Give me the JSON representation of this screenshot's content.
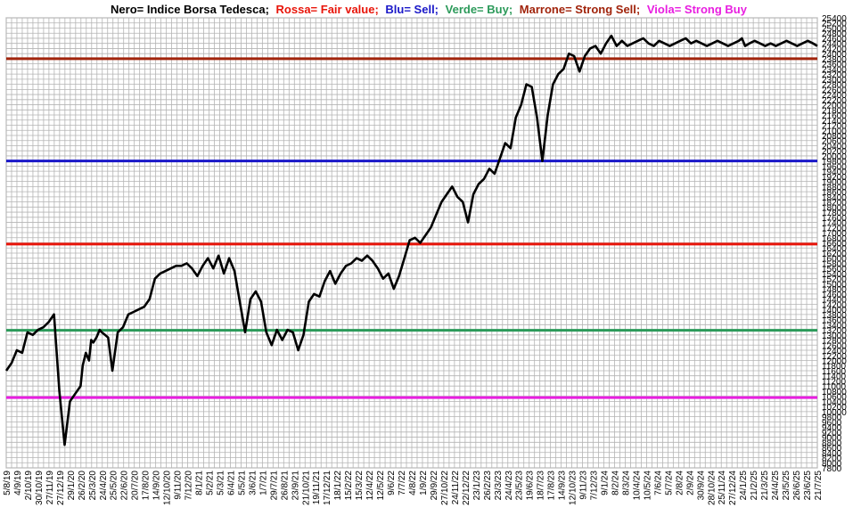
{
  "chart_data": {
    "type": "line",
    "title_parts": [
      {
        "text": "Nero= Indice Borsa Tedesca;",
        "color": "#000000"
      },
      {
        "text": "Rossa= Fair value;",
        "color": "#e8150a"
      },
      {
        "text": "Blu= Sell;",
        "color": "#1a18c8"
      },
      {
        "text": "Verde= Buy;",
        "color": "#2c9a5a"
      },
      {
        "text": "Marrone= Strong Sell;",
        "color": "#a1240c"
      },
      {
        "text": "Viola= Strong Buy",
        "color": "#e81ee0"
      }
    ],
    "ylim": [
      7800,
      25400
    ],
    "ytick_step": 200,
    "ytick_labels": [
      "7800",
      "8000",
      "8200",
      "8400",
      "8600",
      "8800",
      "9000",
      "9200",
      "9400",
      "9600",
      "9800",
      "10000",
      "10200",
      "10400",
      "10600",
      "10800",
      "11000",
      "11200",
      "11400",
      "11600",
      "11800",
      "12000",
      "12200",
      "12400",
      "12600",
      "12800",
      "13000",
      "13200",
      "13400",
      "13600",
      "13800",
      "14000",
      "14200",
      "14400",
      "14600",
      "14800",
      "15000",
      "15200",
      "15400",
      "15600",
      "15800",
      "16000",
      "16200",
      "16400",
      "16600",
      "16800",
      "17000",
      "17200",
      "17400",
      "17600",
      "17800",
      "18000",
      "18200",
      "18400",
      "18600",
      "18800",
      "19000",
      "19200",
      "19400",
      "19600",
      "19800",
      "20000",
      "20200",
      "20400",
      "20600",
      "20800",
      "21000",
      "21200",
      "21400",
      "21600",
      "21800",
      "22000",
      "22200",
      "22400",
      "22600",
      "22800",
      "23000",
      "23200",
      "23400",
      "23600",
      "23800",
      "24000",
      "24200",
      "24400",
      "24600",
      "24800",
      "25000",
      "25200",
      "25400"
    ],
    "xtick_labels": [
      "5/8/19",
      "4/9/19",
      "2/10/19",
      "30/10/19",
      "27/11/19",
      "27/12/19",
      "29/1/20",
      "26/2/20",
      "25/3/20",
      "24/4/20",
      "25/5/20",
      "22/6/20",
      "20/7/20",
      "17/8/20",
      "14/9/20",
      "12/10/20",
      "9/11/20",
      "7/12/20",
      "8/1/21",
      "5/2/21",
      "5/3/21",
      "6/4/21",
      "5/5/21",
      "3/6/21",
      "1/7/21",
      "29/7/21",
      "26/8/21",
      "23/9/21",
      "21/10/21",
      "19/11/21",
      "17/12/21",
      "18/1/22",
      "15/2/22",
      "15/3/22",
      "12/4/22",
      "12/5/22",
      "9/6/22",
      "7/7/22",
      "4/8/22",
      "1/9/22",
      "29/9/22",
      "27/10/22",
      "24/11/22",
      "22/12/22",
      "23/1/23",
      "26/2/23",
      "23/3/23",
      "24/4/23",
      "23/5/23",
      "19/6/23",
      "18/7/23",
      "17/8/23",
      "14/9/23",
      "12/10/23",
      "9/11/23",
      "7/12/23",
      "9/1/24",
      "8/2/24",
      "8/3/24",
      "10/4/24",
      "10/5/24",
      "7/6/24",
      "5/7/24",
      "2/8/24",
      "2/9/24",
      "30/9/24",
      "28/10/24",
      "25/11/24",
      "27/12/24",
      "24/1/25",
      "21/2/25",
      "21/3/25",
      "24/4/25",
      "23/5/25",
      "26/6/25",
      "23/6/25",
      "21/7/25"
    ],
    "horizontal_lines": [
      {
        "name": "Strong Sell",
        "value": 23800,
        "color": "#a1240c"
      },
      {
        "name": "Sell",
        "value": 19800,
        "color": "#1a18c8"
      },
      {
        "name": "Fair value",
        "value": 16550,
        "color": "#e8150a"
      },
      {
        "name": "Buy",
        "value": 13180,
        "color": "#2c9a5a"
      },
      {
        "name": "Strong Buy",
        "value": 10550,
        "color": "#e81ee0"
      }
    ],
    "index_series": {
      "name": "Indice Borsa Tedesca",
      "color": "#000000",
      "x": [
        0,
        0.5,
        1,
        1.5,
        2,
        2.5,
        3,
        3.5,
        4,
        4.5,
        5,
        5.5,
        6,
        6.5,
        7,
        7.2,
        7.5,
        7.8,
        8,
        8.2,
        8.5,
        8.8,
        9,
        9.3,
        9.6,
        10,
        10.5,
        11,
        11.5,
        12,
        12.5,
        13,
        13.5,
        14,
        14.5,
        15,
        15.5,
        16,
        16.5,
        17,
        17.5,
        18,
        18.5,
        19,
        19.5,
        20,
        20.5,
        21,
        21.5,
        22,
        22.5,
        23,
        23.5,
        24,
        24.5,
        25,
        25.5,
        26,
        26.5,
        27,
        27.5,
        28,
        28.5,
        29,
        29.5,
        30,
        30.5,
        31,
        31.5,
        32,
        32.5,
        33,
        33.5,
        34,
        34.5,
        35,
        35.5,
        36,
        36.5,
        37,
        37.5,
        38,
        38.5,
        39,
        39.5,
        40,
        40.5,
        41,
        41.5,
        42,
        42.5,
        43,
        43.5,
        44,
        44.5,
        45,
        45.5,
        46,
        46.5,
        47,
        47.5,
        48,
        48.5,
        49,
        49.5,
        50,
        50.5,
        51,
        51.5,
        52,
        52.5,
        53,
        53.5,
        54,
        54.5,
        55,
        55.5,
        56,
        56.5,
        57,
        57.5,
        58,
        58.5,
        59,
        59.5,
        60,
        60.5,
        61,
        61.5,
        62,
        62.5,
        63,
        63.5,
        64,
        64.5,
        65,
        65.5,
        66,
        66.5,
        67,
        67.5,
        68,
        68.5,
        69,
        69.3,
        69.6,
        70,
        70.5,
        71,
        71.5,
        72,
        72.5,
        73,
        73.5,
        74,
        74.5,
        75,
        75.5,
        76,
        76.4
      ],
      "values": [
        11600,
        11900,
        12400,
        12300,
        13100,
        13000,
        13200,
        13300,
        13500,
        13800,
        10800,
        8700,
        10400,
        10700,
        11000,
        11800,
        12300,
        12000,
        12800,
        12700,
        12900,
        13200,
        13100,
        13000,
        12900,
        11600,
        13100,
        13300,
        13800,
        13900,
        14000,
        14100,
        14400,
        15200,
        15400,
        15500,
        15600,
        15700,
        15700,
        15800,
        15600,
        15300,
        15700,
        16000,
        15600,
        16100,
        15400,
        16000,
        15500,
        14300,
        13100,
        14400,
        14700,
        14300,
        13100,
        12600,
        13200,
        12800,
        13200,
        13100,
        12400,
        13000,
        14300,
        14600,
        14500,
        15100,
        15500,
        15000,
        15400,
        15700,
        15800,
        16000,
        15900,
        16100,
        15900,
        15600,
        15200,
        15400,
        14800,
        15300,
        16000,
        16700,
        16800,
        16600,
        16900,
        17200,
        17700,
        18200,
        18500,
        18800,
        18400,
        18200,
        17400,
        18500,
        18900,
        19100,
        19500,
        19300,
        19900,
        20500,
        20300,
        21500,
        22000,
        22800,
        22700,
        21500,
        19800,
        21600,
        22800,
        23200,
        23400,
        24000,
        23900,
        23300,
        23900,
        24200,
        24300,
        24000,
        24400,
        24700,
        24300,
        24500,
        24300,
        24400,
        24500,
        24600,
        24400,
        24300,
        24500,
        24400,
        24300,
        24400,
        24500,
        24600,
        24400,
        24500,
        24400,
        24300,
        24400,
        24500,
        24400,
        24300,
        24400,
        24500,
        24600,
        24300,
        24400,
        24500,
        24400,
        24300,
        24400,
        24300,
        24400,
        24500,
        24400,
        24300,
        24400,
        24500,
        24400,
        24300
      ]
    }
  }
}
